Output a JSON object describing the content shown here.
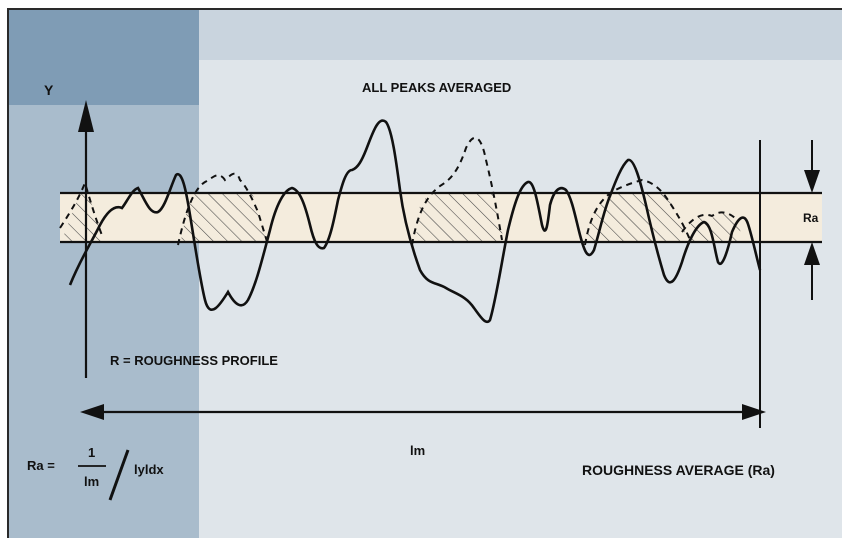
{
  "diagram": {
    "title": "ALL PEAKS AVERAGED",
    "y_axis_label": "Y",
    "band_label": "Ra",
    "profile_label": "R = ROUGHNESS PROFILE",
    "length_label": "lm",
    "average_label": "ROUGHNESS AVERAGE (Ra)",
    "formula": {
      "lhs": "Ra =",
      "numerator": "1",
      "denominator": "lm",
      "integrand": "lyldx"
    }
  },
  "colors": {
    "ink": "#111111",
    "band_fill": "#f4ecdd",
    "page_bg": "#dfe5ea",
    "left_panel": "#a9bccc"
  }
}
